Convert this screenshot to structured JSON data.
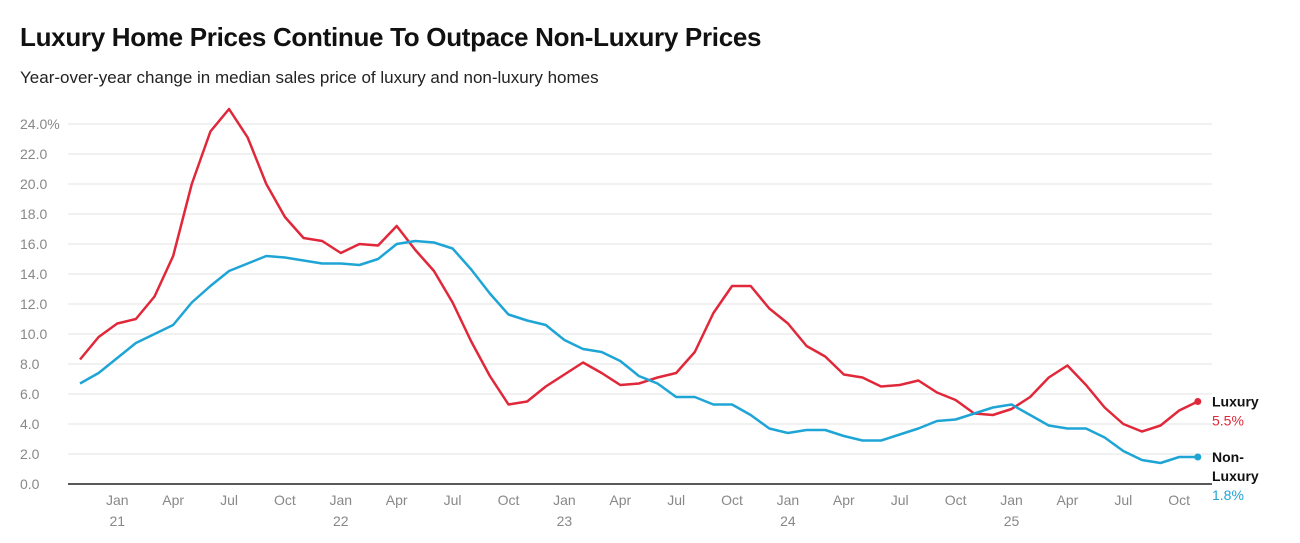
{
  "chart_data": {
    "type": "line",
    "title": "Luxury Home Prices Continue To Outpace Non-Luxury Prices",
    "subtitle": "Year-over-year change in median sales price of luxury and non-luxury homes",
    "x_start": "2020-11",
    "x_end": "2025-11",
    "x_ticks": [
      {
        "month": "Jan",
        "year": "21",
        "date": "2021-01"
      },
      {
        "month": "Apr",
        "year": "",
        "date": "2021-04"
      },
      {
        "month": "Jul",
        "year": "",
        "date": "2021-07"
      },
      {
        "month": "Oct",
        "year": "",
        "date": "2021-10"
      },
      {
        "month": "Jan",
        "year": "22",
        "date": "2022-01"
      },
      {
        "month": "Apr",
        "year": "",
        "date": "2022-04"
      },
      {
        "month": "Jul",
        "year": "",
        "date": "2022-07"
      },
      {
        "month": "Oct",
        "year": "",
        "date": "2022-10"
      },
      {
        "month": "Jan",
        "year": "23",
        "date": "2023-01"
      },
      {
        "month": "Apr",
        "year": "",
        "date": "2023-04"
      },
      {
        "month": "Jul",
        "year": "",
        "date": "2023-07"
      },
      {
        "month": "Oct",
        "year": "",
        "date": "2023-10"
      },
      {
        "month": "Jan",
        "year": "24",
        "date": "2024-01"
      },
      {
        "month": "Apr",
        "year": "",
        "date": "2024-04"
      },
      {
        "month": "Jul",
        "year": "",
        "date": "2024-07"
      },
      {
        "month": "Oct",
        "year": "",
        "date": "2024-10"
      },
      {
        "month": "Jan",
        "year": "25",
        "date": "2025-01"
      },
      {
        "month": "Apr",
        "year": "",
        "date": "2025-04"
      },
      {
        "month": "Jul",
        "year": "",
        "date": "2025-07"
      },
      {
        "month": "Oct",
        "year": "",
        "date": "2025-10"
      }
    ],
    "y_ticks": [
      "0.0",
      "2.0",
      "4.0",
      "6.0",
      "8.0",
      "10.0",
      "12.0",
      "14.0",
      "16.0",
      "18.0",
      "20.0",
      "22.0",
      "24.0%"
    ],
    "ylim": [
      0,
      24
    ],
    "grid": true,
    "series": [
      {
        "name": "Luxury",
        "end_label": "5.5%",
        "color": "#e0283a",
        "values": [
          8.3,
          9.8,
          10.7,
          11.0,
          12.5,
          15.2,
          20.0,
          23.5,
          25.0,
          23.1,
          20.0,
          17.8,
          16.4,
          16.2,
          15.4,
          16.0,
          15.9,
          17.2,
          15.6,
          14.2,
          12.1,
          9.5,
          7.2,
          5.3,
          5.5,
          6.5,
          7.3,
          8.1,
          7.4,
          6.6,
          6.7,
          7.1,
          7.4,
          8.8,
          11.4,
          13.2,
          13.2,
          11.7,
          10.7,
          9.2,
          8.5,
          7.3,
          7.1,
          6.5,
          6.6,
          6.9,
          6.1,
          5.6,
          4.7,
          4.6,
          5.0,
          5.8,
          7.1,
          7.9,
          6.6,
          5.1,
          4.0,
          3.5,
          3.9,
          4.9,
          5.5
        ]
      },
      {
        "name": "Non-Luxury",
        "name_lines": [
          "Non-",
          "Luxury"
        ],
        "end_label": "1.8%",
        "color": "#1ea5d6",
        "values": [
          6.7,
          7.4,
          8.4,
          9.4,
          10.0,
          10.6,
          12.1,
          13.2,
          14.2,
          14.7,
          15.2,
          15.1,
          14.9,
          14.7,
          14.7,
          14.6,
          15.0,
          16.0,
          16.2,
          16.1,
          15.7,
          14.3,
          12.7,
          11.3,
          10.9,
          10.6,
          9.6,
          9.0,
          8.8,
          8.2,
          7.2,
          6.7,
          5.8,
          5.8,
          5.3,
          5.3,
          4.6,
          3.7,
          3.4,
          3.6,
          3.6,
          3.2,
          2.9,
          2.9,
          3.3,
          3.7,
          4.2,
          4.3,
          4.7,
          5.1,
          5.3,
          4.6,
          3.9,
          3.7,
          3.7,
          3.1,
          2.2,
          1.6,
          1.4,
          1.8,
          1.8
        ]
      }
    ]
  }
}
